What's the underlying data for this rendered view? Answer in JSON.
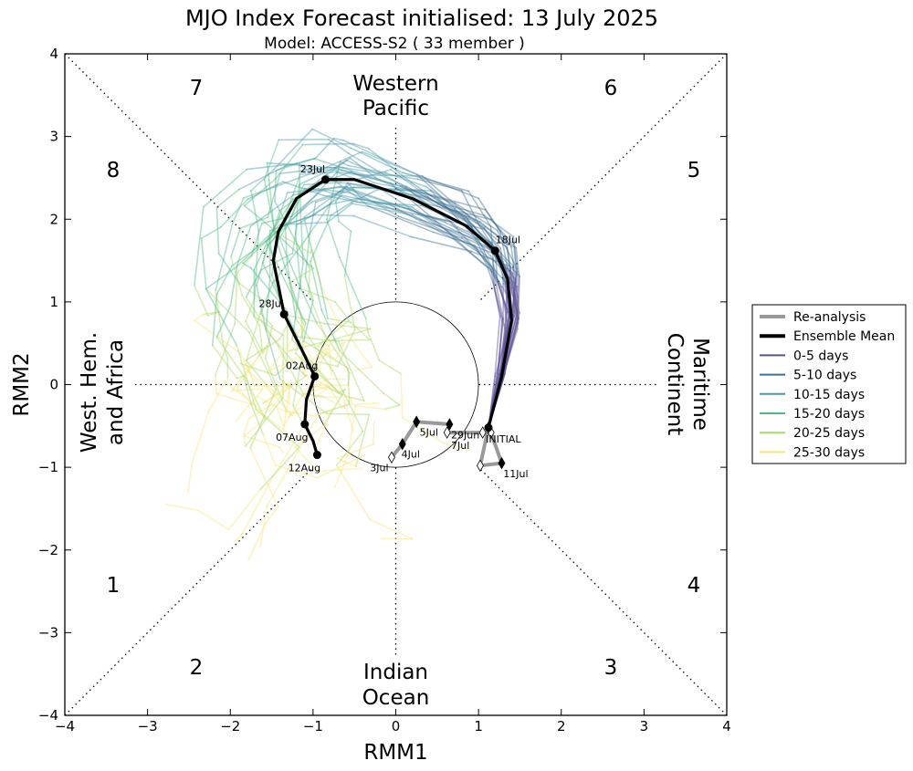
{
  "chart_data": {
    "type": "line",
    "title": "MJO Index Forecast initialised:  13  July 2025",
    "subtitle": "Model: ACCESS-S2 ( 33 member )",
    "xlabel": "RMM1",
    "ylabel": "RMM2",
    "xlim": [
      -4,
      4
    ],
    "ylim": [
      -4,
      4
    ],
    "xticks": [
      "−4",
      "−3",
      "−2",
      "−1",
      "0",
      "1",
      "2",
      "3",
      "4"
    ],
    "yticks": [
      "−4",
      "−3",
      "−2",
      "−1",
      "0",
      "1",
      "2",
      "3",
      "4"
    ],
    "phase_numbers": [
      "1",
      "2",
      "3",
      "4",
      "5",
      "6",
      "7",
      "8"
    ],
    "region_labels": {
      "top_line1": "Western",
      "top_line2": "Pacific",
      "bottom_line1": "Indian",
      "bottom_line2": "Ocean",
      "left_line1": "West. Hem.",
      "left_line2": "and Africa",
      "right_line1": "Maritime",
      "right_line2": "Continent"
    },
    "unit_circle_radius": 1,
    "legend": {
      "position": "outside right",
      "entries": [
        {
          "label": "Re-analysis",
          "color": "#999999"
        },
        {
          "label": "Ensemble Mean",
          "color": "#000000"
        },
        {
          "label": "0-5 days",
          "color": "#5e4f96"
        },
        {
          "label": "5-10 days",
          "color": "#3f6f91"
        },
        {
          "label": "10-15 days",
          "color": "#4b98a8"
        },
        {
          "label": "15-20 days",
          "color": "#4fba86"
        },
        {
          "label": "20-25 days",
          "color": "#a9d864"
        },
        {
          "label": "25-30 days",
          "color": "#f3e776"
        }
      ]
    },
    "reanalysis": {
      "color": "#999999",
      "points": [
        {
          "x": -0.05,
          "y": -0.88
        },
        {
          "x": 0.08,
          "y": -0.72
        },
        {
          "x": 0.25,
          "y": -0.45
        },
        {
          "x": 0.65,
          "y": -0.48
        },
        {
          "x": 0.62,
          "y": -0.58
        },
        {
          "x": 1.05,
          "y": -0.58
        },
        {
          "x": 1.15,
          "y": -0.58
        },
        {
          "x": 1.28,
          "y": -0.95
        },
        {
          "x": 1.02,
          "y": -0.98
        },
        {
          "x": 1.12,
          "y": -0.52
        }
      ],
      "filled_markers": [
        1,
        2,
        3,
        7
      ],
      "labels": [
        {
          "text": "3Jul",
          "x": -0.2,
          "y": -1.05
        },
        {
          "text": "4Jul",
          "x": 0.18,
          "y": -0.88
        },
        {
          "text": "5Jul",
          "x": 0.4,
          "y": -0.62
        },
        {
          "text": "29Jun",
          "x": 0.84,
          "y": -0.65
        },
        {
          "text": "7Jul",
          "x": 0.78,
          "y": -0.78
        },
        {
          "text": "INITIAL",
          "x": 1.3,
          "y": -0.7
        },
        {
          "text": "11Jul",
          "x": 1.45,
          "y": -1.12
        }
      ]
    },
    "ensemble_mean": {
      "color": "#000000",
      "points": [
        {
          "x": 1.12,
          "y": -0.52
        },
        {
          "x": 1.28,
          "y": 0.1
        },
        {
          "x": 1.4,
          "y": 0.78
        },
        {
          "x": 1.35,
          "y": 1.28
        },
        {
          "x": 1.2,
          "y": 1.62
        },
        {
          "x": 0.85,
          "y": 1.92
        },
        {
          "x": 0.2,
          "y": 2.25
        },
        {
          "x": -0.5,
          "y": 2.48
        },
        {
          "x": -0.85,
          "y": 2.48
        },
        {
          "x": -1.2,
          "y": 2.25
        },
        {
          "x": -1.42,
          "y": 1.85
        },
        {
          "x": -1.48,
          "y": 1.5
        },
        {
          "x": -1.35,
          "y": 0.85
        },
        {
          "x": -1.15,
          "y": 0.45
        },
        {
          "x": -0.98,
          "y": 0.1
        },
        {
          "x": -1.08,
          "y": -0.18
        },
        {
          "x": -1.1,
          "y": -0.48
        },
        {
          "x": -1.0,
          "y": -0.68
        },
        {
          "x": -0.95,
          "y": -0.85
        }
      ],
      "dates": [
        {
          "text": "18Jul",
          "x": 1.2,
          "y": 1.62
        },
        {
          "text": "23Jul",
          "x": -0.85,
          "y": 2.48
        },
        {
          "text": "28Jul",
          "x": -1.35,
          "y": 0.85
        },
        {
          "text": "02Aug",
          "x": -0.98,
          "y": 0.1
        },
        {
          "text": "07Aug",
          "x": -1.1,
          "y": -0.48
        },
        {
          "text": "12Aug",
          "x": -0.95,
          "y": -0.85
        }
      ]
    },
    "ensemble_members": 33
  }
}
